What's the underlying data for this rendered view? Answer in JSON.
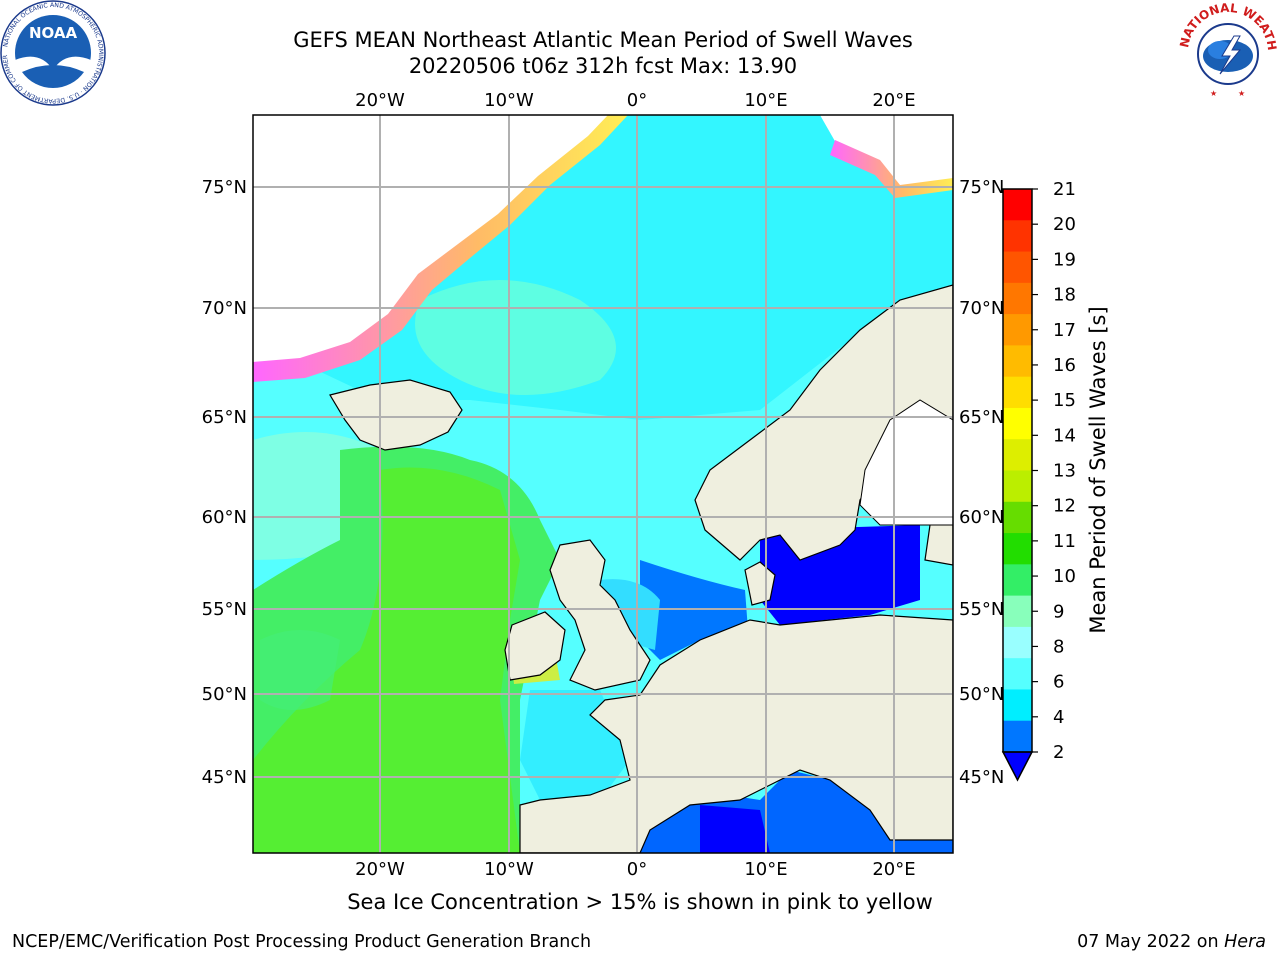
{
  "title": {
    "line1": "GEFS MEAN Northeast Atlantic Mean Period of Swell Waves",
    "line2": "20220506 t06z 312h fcst   Max: 13.90"
  },
  "map": {
    "lon_labels": [
      "20°W",
      "10°W",
      "0°",
      "10°E",
      "20°E"
    ],
    "lat_labels": [
      "75°N",
      "70°N",
      "65°N",
      "60°N",
      "55°N",
      "50°N",
      "45°N"
    ],
    "lon_range": [
      -30,
      25
    ],
    "lat_range": [
      41,
      78
    ]
  },
  "colorbar": {
    "label": "Mean Period of Swell Waves [s]",
    "ticks": [
      "21",
      "20",
      "19",
      "18",
      "17",
      "16",
      "15",
      "14",
      "13",
      "12",
      "11",
      "10",
      "9",
      "8",
      "6",
      "4",
      "2"
    ],
    "colors": [
      "#ff0000",
      "#ff3300",
      "#ff5500",
      "#ff7700",
      "#ff9900",
      "#ffbb00",
      "#ffdd00",
      "#ffff00",
      "#ddee00",
      "#bbee00",
      "#66dd00",
      "#22dd00",
      "#33ee66",
      "#88ffbb",
      "#99ffff",
      "#55ffff",
      "#00eeff",
      "#0077ff"
    ],
    "extend_color": "#0000ff"
  },
  "caption": "Sea Ice Concentration > 15% is shown in pink to yellow",
  "footer": {
    "left": "NCEP/EMC/Verification Post Processing Product Generation Branch",
    "date": "07 May 2022 on ",
    "host": "Hera"
  },
  "logos": {
    "noaa": "NOAA",
    "noaa_ring": "NATIONAL OCEANIC AND ATMOSPHERIC ADMINISTRATION · U.S. DEPARTMENT OF COMMERCE",
    "nws_ring": "NATIONAL WEATHER SERVICE"
  }
}
